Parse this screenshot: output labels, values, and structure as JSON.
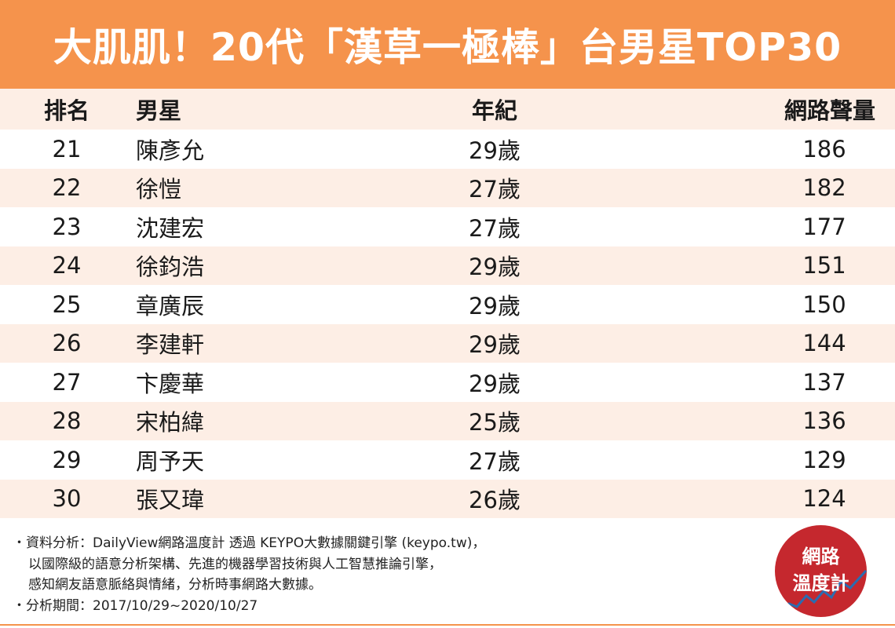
{
  "title": "大肌肌！20代「漢草一極棒」台男星TOP30",
  "headers": {
    "rank": "排名",
    "name": "男星",
    "age": "年紀",
    "volume": "網路聲量"
  },
  "rows": [
    {
      "rank": "21",
      "name": "陳彥允",
      "age": "29歲",
      "volume": "186"
    },
    {
      "rank": "22",
      "name": "徐愷",
      "age": "27歲",
      "volume": "182"
    },
    {
      "rank": "23",
      "name": "沈建宏",
      "age": "27歲",
      "volume": "177"
    },
    {
      "rank": "24",
      "name": "徐鈞浩",
      "age": "29歲",
      "volume": "151"
    },
    {
      "rank": "25",
      "name": "章廣辰",
      "age": "29歲",
      "volume": "150"
    },
    {
      "rank": "26",
      "name": "李建軒",
      "age": "29歲",
      "volume": "144"
    },
    {
      "rank": "27",
      "name": "卞慶華",
      "age": "29歲",
      "volume": "137"
    },
    {
      "rank": "28",
      "name": "宋柏緯",
      "age": "25歲",
      "volume": "136"
    },
    {
      "rank": "29",
      "name": "周予天",
      "age": "27歲",
      "volume": "129"
    },
    {
      "rank": "30",
      "name": "張又瑋",
      "age": "26歲",
      "volume": "124"
    }
  ],
  "footer": {
    "line1": "・資料分析：DailyView網路溫度計 透過 KEYPO大數據關鍵引擎 (keypo.tw)，",
    "line2": "以國際級的語意分析架構、先進的機器學習技術與人工智慧推論引擎，",
    "line3": "感知網友語意脈絡與情緒，分析時事網路大數據。",
    "line4": "・分析期間：2017/10/29~2020/10/27"
  },
  "logo": {
    "line1": "網路",
    "line2": "溫度計"
  },
  "colors": {
    "accent": "#f5934c",
    "stripe": "#fdeee5",
    "logo": "#c5282e"
  }
}
